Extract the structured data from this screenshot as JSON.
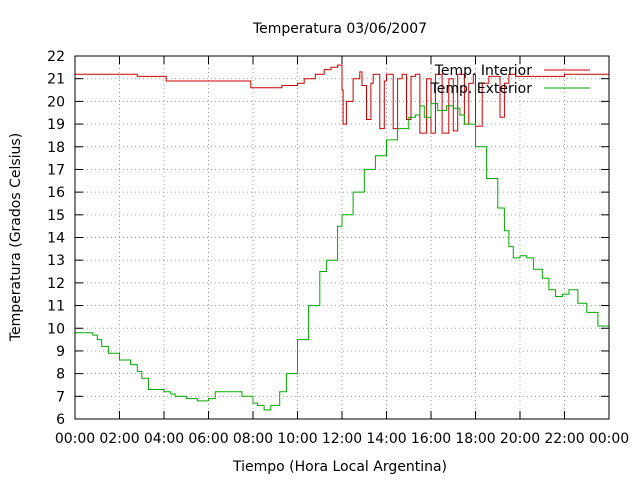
{
  "chart_data": {
    "type": "line",
    "title": "Temperatura 03/06/2007",
    "xlabel": "Tiempo (Hora Local Argentina)",
    "ylabel": "Temperatura (Grados Celsius)",
    "xlim": [
      0,
      24
    ],
    "ylim": [
      6,
      22
    ],
    "grid": true,
    "legend_position": "top-right",
    "x_tick_labels": [
      "00:00",
      "02:00",
      "04:00",
      "06:00",
      "08:00",
      "10:00",
      "12:00",
      "14:00",
      "16:00",
      "18:00",
      "20:00",
      "22:00",
      "00:00"
    ],
    "y_tick_labels": [
      "6",
      "7",
      "8",
      "9",
      "10",
      "11",
      "12",
      "13",
      "14",
      "15",
      "16",
      "17",
      "18",
      "19",
      "20",
      "21",
      "22"
    ],
    "series": [
      {
        "name": "Temp. Interior",
        "color": "#cc0000",
        "x": [
          0,
          2.7,
          2.8,
          4.0,
          4.1,
          7.8,
          7.9,
          9.2,
          9.3,
          10.0,
          10.3,
          10.8,
          11.2,
          11.5,
          11.8,
          12.0,
          12.05,
          12.2,
          12.5,
          12.8,
          12.9,
          13.1,
          13.3,
          13.4,
          13.7,
          13.9,
          14.0,
          14.3,
          14.5,
          14.7,
          14.9,
          15.1,
          15.3,
          15.5,
          15.8,
          16.0,
          16.2,
          16.5,
          16.8,
          17.0,
          17.2,
          17.5,
          17.7,
          17.9,
          18.0,
          18.3,
          18.6,
          18.8,
          19.1,
          19.3,
          19.5,
          19.8,
          21.0,
          21.5,
          22.0,
          22.5,
          23.0,
          24.0
        ],
        "values": [
          21.2,
          21.2,
          21.1,
          21.1,
          20.9,
          20.9,
          20.6,
          20.6,
          20.7,
          20.8,
          21.0,
          21.2,
          21.4,
          21.5,
          21.6,
          20.5,
          19.0,
          20.0,
          21.0,
          21.3,
          20.7,
          19.2,
          20.8,
          21.2,
          18.8,
          20.9,
          21.2,
          18.8,
          21.0,
          21.2,
          19.2,
          21.1,
          21.2,
          18.6,
          21.0,
          18.6,
          21.2,
          18.6,
          21.0,
          18.7,
          21.2,
          19.0,
          20.8,
          21.2,
          18.9,
          20.8,
          21.1,
          21.1,
          19.3,
          20.8,
          21.2,
          21.1,
          21.1,
          21.1,
          21.2,
          21.2,
          21.2,
          21.2
        ]
      },
      {
        "name": "Temp. Exterior",
        "color": "#00aa00",
        "x": [
          0,
          0.5,
          0.8,
          1.0,
          1.2,
          1.5,
          2.0,
          2.5,
          2.8,
          3.0,
          3.3,
          4.0,
          4.3,
          4.5,
          5.0,
          5.5,
          6.0,
          6.3,
          6.7,
          7.0,
          7.3,
          7.5,
          8.0,
          8.2,
          8.5,
          8.8,
          9.2,
          9.5,
          10.0,
          10.5,
          11.0,
          11.3,
          11.8,
          12.0,
          12.5,
          13.0,
          13.5,
          14.0,
          14.5,
          15.0,
          15.3,
          15.5,
          15.7,
          16.0,
          16.3,
          16.7,
          17.0,
          17.3,
          17.5,
          18.0,
          18.5,
          19.0,
          19.3,
          19.5,
          19.7,
          20.0,
          20.3,
          20.6,
          21.0,
          21.3,
          21.6,
          21.9,
          22.2,
          22.6,
          23.0,
          23.5,
          24.0
        ],
        "values": [
          9.8,
          9.8,
          9.7,
          9.5,
          9.2,
          8.9,
          8.6,
          8.4,
          8.1,
          7.8,
          7.3,
          7.2,
          7.1,
          7.0,
          6.9,
          6.8,
          6.9,
          7.2,
          7.2,
          7.2,
          7.2,
          7.0,
          6.7,
          6.6,
          6.4,
          6.6,
          7.2,
          8.0,
          9.5,
          11.0,
          12.5,
          13.0,
          14.5,
          15.0,
          16.0,
          17.0,
          17.6,
          18.3,
          18.8,
          19.3,
          19.4,
          19.8,
          19.3,
          19.9,
          19.6,
          19.8,
          19.7,
          19.4,
          19.0,
          18.0,
          16.6,
          15.3,
          14.3,
          13.6,
          13.1,
          13.2,
          13.1,
          12.6,
          12.2,
          11.7,
          11.4,
          11.5,
          11.7,
          11.1,
          10.7,
          10.1,
          9.3
        ]
      }
    ]
  }
}
